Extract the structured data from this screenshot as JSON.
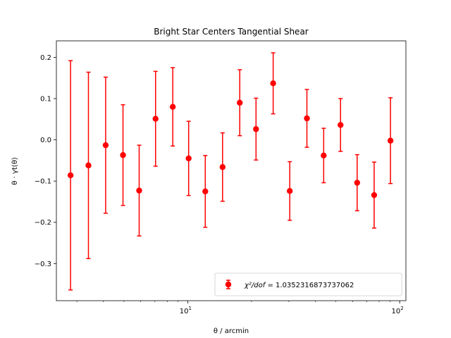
{
  "chart_data": {
    "type": "scatter",
    "title": "Bright Star Centers Tangential Shear",
    "xlabel": "θ / arcmin",
    "ylabel": "θ · γt(θ)",
    "xscale": "log",
    "xlim": [
      2.4,
      107
    ],
    "ylim": [
      -0.39,
      0.24
    ],
    "grid": false,
    "yticks": [
      0.2,
      0.1,
      0.0,
      -0.1,
      -0.2,
      -0.3
    ],
    "ytick_labels": [
      "0.2",
      "0.1",
      "0.0",
      "−0.1",
      "−0.2",
      "−0.3"
    ],
    "xticks_major": [
      10,
      100
    ],
    "xtick_labels": {
      "base": "10",
      "exponents": [
        "1",
        "2"
      ]
    },
    "color": "#ff0000",
    "legend_location": "lower-right",
    "series": [
      {
        "name": "χ²/dof = 1.0352316873737062",
        "x": [
          2.8,
          3.4,
          4.1,
          4.95,
          5.9,
          7.05,
          8.5,
          10.1,
          12.1,
          14.6,
          17.6,
          21.0,
          25.3,
          30.3,
          36.5,
          43.8,
          52.6,
          63.0,
          75.8,
          90.5
        ],
        "y": [
          -0.086,
          -0.062,
          -0.013,
          -0.037,
          -0.123,
          0.051,
          0.08,
          -0.045,
          -0.125,
          -0.066,
          0.09,
          0.026,
          0.137,
          -0.124,
          0.052,
          -0.038,
          0.036,
          -0.104,
          -0.134,
          -0.002
        ],
        "yerr": [
          0.278,
          0.226,
          0.165,
          0.122,
          0.11,
          0.115,
          0.095,
          0.09,
          0.087,
          0.083,
          0.08,
          0.075,
          0.074,
          0.071,
          0.07,
          0.066,
          0.064,
          0.068,
          0.08,
          0.104
        ]
      }
    ],
    "legend": {
      "prefix": "χ²/dof",
      "equals": " = ",
      "value": "1.0352316873737062"
    }
  }
}
